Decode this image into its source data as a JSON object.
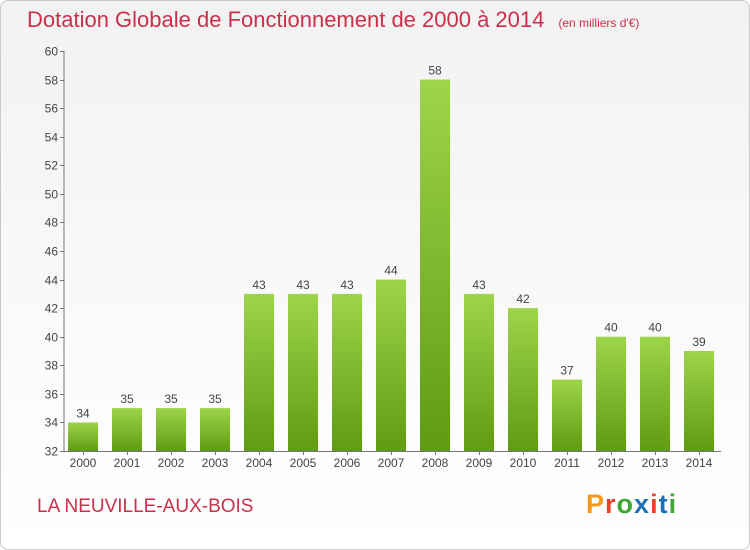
{
  "header": {
    "title": "Dotation Globale de Fonctionnement de 2000 à 2014",
    "unit": "(en milliers d'€)"
  },
  "footer": {
    "commune": "LA NEUVILLE-AUX-BOIS",
    "logo": "Proxiti",
    "logo_colors": [
      "#f39a1e",
      "#e8412c",
      "#3fa535",
      "#1d71b8",
      "#e8412c",
      "#1d71b8",
      "#3fa535"
    ]
  },
  "colors": {
    "bar_light": "#9dd44a",
    "bar_dark": "#5f9c12",
    "title": "#cc2f49",
    "axis": "#555555"
  },
  "chart_data": {
    "type": "bar",
    "title": "Dotation Globale de Fonctionnement de 2000 à 2014",
    "subtitle": "(en milliers d'€)",
    "xlabel": "",
    "ylabel": "",
    "categories": [
      "2000",
      "2001",
      "2002",
      "2003",
      "2004",
      "2005",
      "2006",
      "2007",
      "2008",
      "2009",
      "2010",
      "2011",
      "2012",
      "2013",
      "2014"
    ],
    "values": [
      34,
      35,
      35,
      35,
      43,
      43,
      43,
      44,
      58,
      43,
      42,
      37,
      40,
      40,
      39
    ],
    "ylim": [
      32,
      60
    ],
    "yticks": [
      32,
      34,
      36,
      38,
      40,
      42,
      44,
      46,
      48,
      50,
      52,
      54,
      56,
      58,
      60
    ],
    "grid": false,
    "data_labels": true
  }
}
